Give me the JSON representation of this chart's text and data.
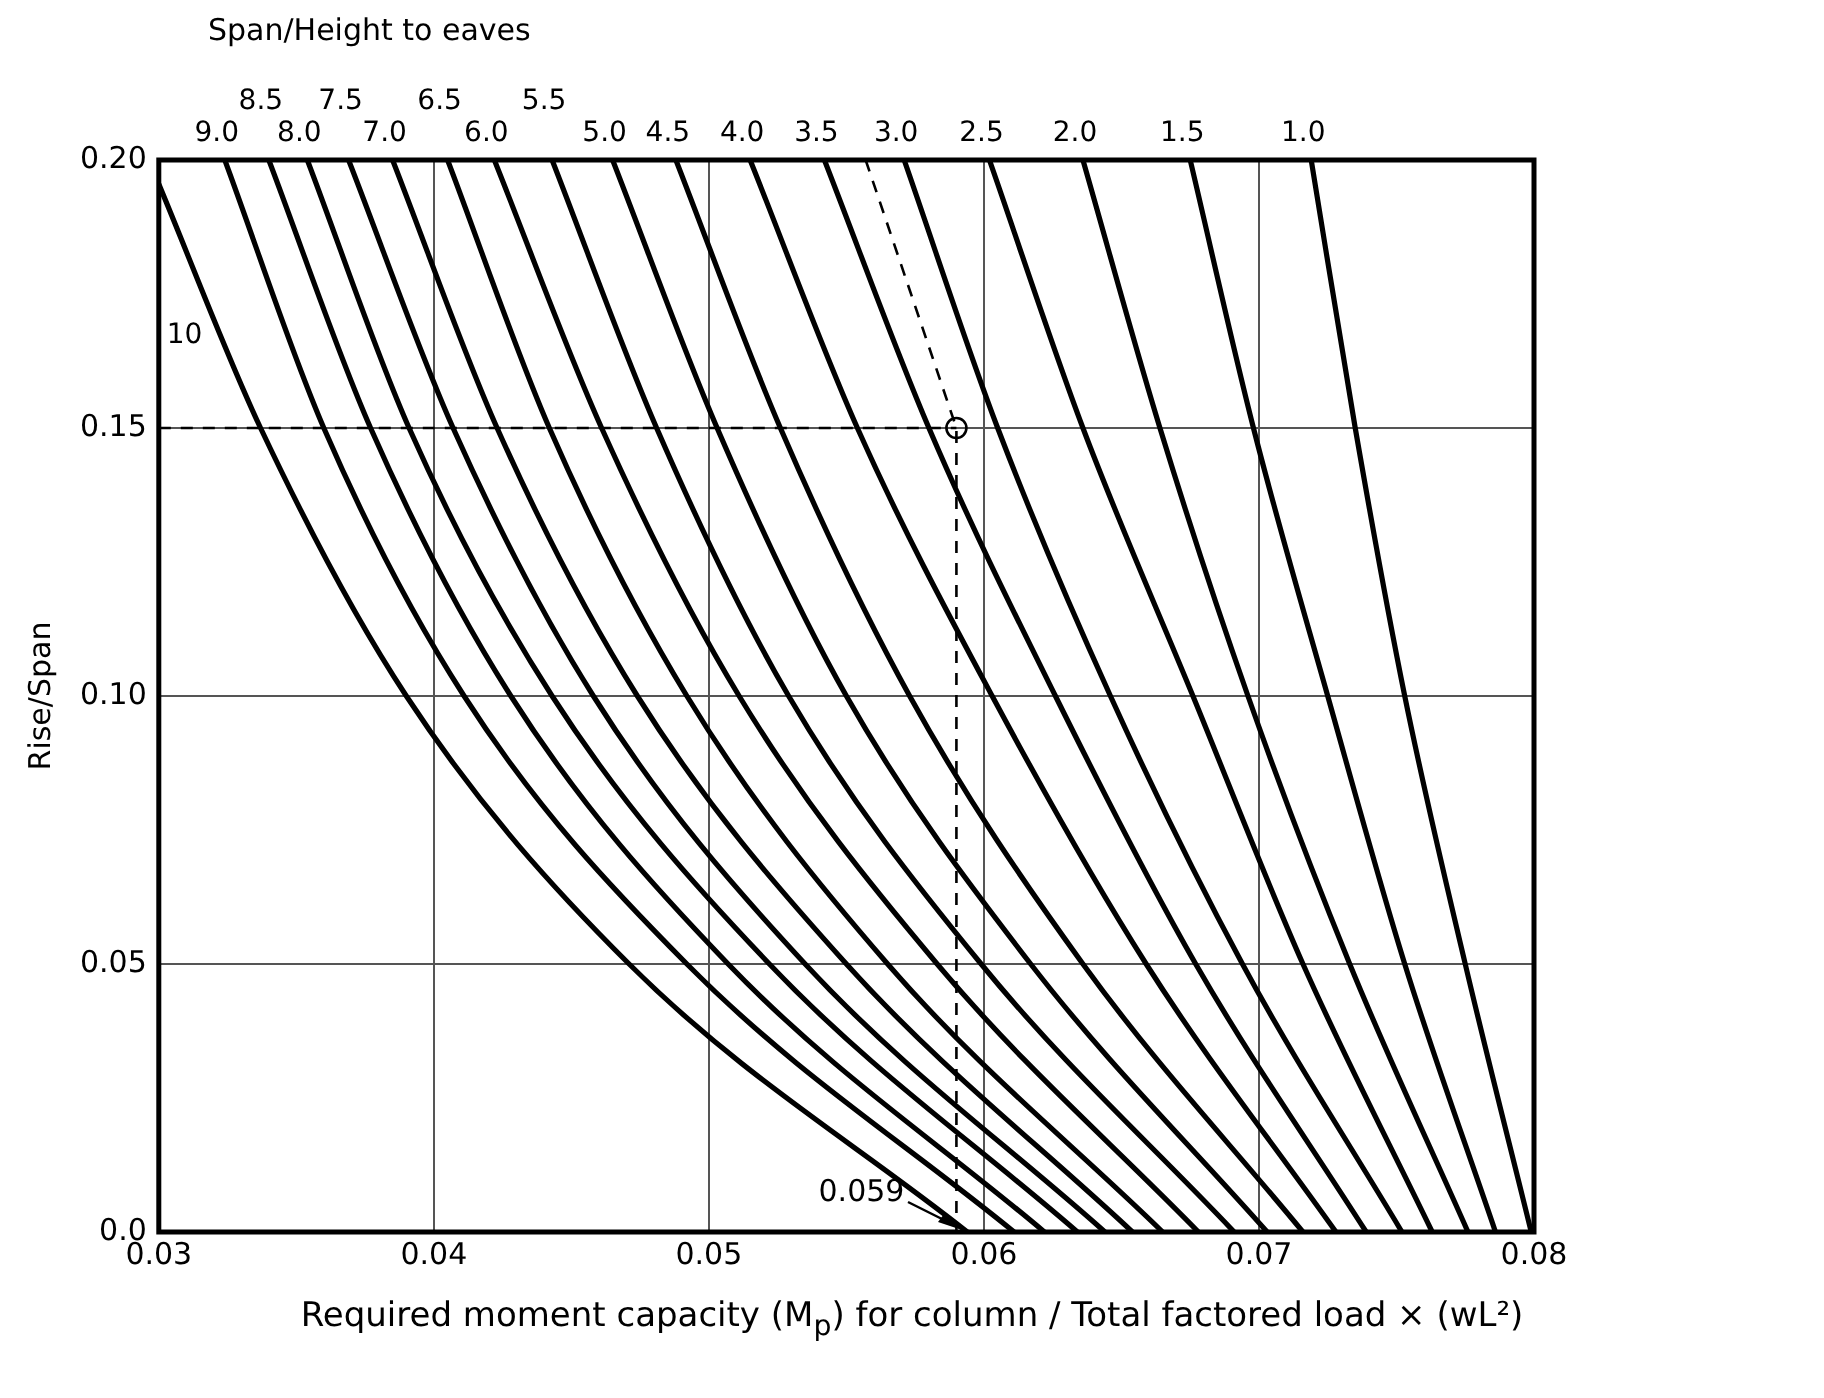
{
  "chart_data": {
    "type": "line",
    "x2label": "Span/Height to eaves",
    "xlabel": "Required moment capacity (M$_{p}$) for column / Total factored load × (wL²)",
    "ylabel": "Rise/Span",
    "xlim": [
      0.03,
      0.08
    ],
    "ylim": [
      0,
      0.2
    ],
    "xticks": [
      0.03,
      0.04,
      0.05,
      0.06,
      0.07,
      0.08
    ],
    "yticks": [
      {
        "value": 0,
        "label": "0.0"
      },
      0.05,
      {
        "value": 0.1,
        "label": "0.10"
      },
      0.15,
      {
        "value": 0.2,
        "label": "0.20"
      }
    ],
    "grid": true,
    "marker": "none",
    "line_style": "solid",
    "series": [
      {
        "name": "10",
        "color": "#000000",
        "x": [
          0.03,
          0.0337,
          0.039,
          0.0471,
          0.0594
        ],
        "values": [
          0.1955,
          0.15,
          0.1,
          0.05,
          0
        ]
      },
      {
        "name": "9.0",
        "color": "#000000",
        "x": [
          0.0324,
          0.036,
          0.0411,
          0.0492,
          0.0611
        ],
        "values": [
          0.2,
          0.15,
          0.1,
          0.05,
          0
        ]
      },
      {
        "name": "8.5",
        "color": "#000000",
        "x": [
          0.034,
          0.0377,
          0.0428,
          0.0507,
          0.0622
        ],
        "values": [
          0.2,
          0.15,
          0.1,
          0.05,
          0
        ]
      },
      {
        "name": "8.0",
        "color": "#000000",
        "x": [
          0.0354,
          0.0391,
          0.0443,
          0.0522,
          0.0634
        ],
        "values": [
          0.2,
          0.15,
          0.1,
          0.05,
          0
        ]
      },
      {
        "name": "7.5",
        "color": "#000000",
        "x": [
          0.0369,
          0.0407,
          0.0458,
          0.0535,
          0.0644
        ],
        "values": [
          0.2,
          0.15,
          0.1,
          0.05,
          0
        ]
      },
      {
        "name": "7.0",
        "color": "#000000",
        "x": [
          0.0385,
          0.0423,
          0.0474,
          0.055,
          0.0654
        ],
        "values": [
          0.2,
          0.15,
          0.1,
          0.05,
          0
        ]
      },
      {
        "name": "6.5",
        "color": "#000000",
        "x": [
          0.0405,
          0.0442,
          0.0492,
          0.0565,
          0.0665
        ],
        "values": [
          0.2,
          0.15,
          0.1,
          0.05,
          0
        ]
      },
      {
        "name": "6.0",
        "color": "#000000",
        "x": [
          0.0422,
          0.0461,
          0.0511,
          0.0583,
          0.0678
        ],
        "values": [
          0.2,
          0.15,
          0.1,
          0.05,
          0
        ]
      },
      {
        "name": "5.5",
        "color": "#000000",
        "x": [
          0.0443,
          0.0481,
          0.0529,
          0.0599,
          0.0691
        ],
        "values": [
          0.2,
          0.15,
          0.1,
          0.05,
          0
        ]
      },
      {
        "name": "5.0",
        "color": "#000000",
        "x": [
          0.0465,
          0.0503,
          0.055,
          0.0617,
          0.0703
        ],
        "values": [
          0.2,
          0.15,
          0.1,
          0.05,
          0
        ]
      },
      {
        "name": "4.5",
        "color": "#000000",
        "x": [
          0.0488,
          0.0526,
          0.0573,
          0.0636,
          0.0716
        ],
        "values": [
          0.2,
          0.15,
          0.1,
          0.05,
          0
        ]
      },
      {
        "name": "4.0",
        "color": "#000000",
        "x": [
          0.0515,
          0.0554,
          0.0603,
          0.0659,
          0.0728
        ],
        "values": [
          0.2,
          0.15,
          0.1,
          0.05,
          0
        ]
      },
      {
        "name": "3.5",
        "color": "#000000",
        "x": [
          0.0542,
          0.058,
          0.0626,
          0.0677,
          0.0739
        ],
        "values": [
          0.2,
          0.15,
          0.1,
          0.05,
          0
        ]
      },
      {
        "name": "3.0",
        "color": "#000000",
        "x": [
          0.0571,
          0.0605,
          0.0646,
          0.0694,
          0.0752
        ],
        "values": [
          0.2,
          0.15,
          0.1,
          0.05,
          0
        ]
      },
      {
        "name": "2.5",
        "color": "#000000",
        "x": [
          0.0602,
          0.0636,
          0.0676,
          0.0716,
          0.0763
        ],
        "values": [
          0.2,
          0.15,
          0.1,
          0.05,
          0
        ]
      },
      {
        "name": "2.0",
        "color": "#000000",
        "x": [
          0.0636,
          0.0664,
          0.0696,
          0.0733,
          0.0776
        ],
        "values": [
          0.2,
          0.15,
          0.1,
          0.05,
          0
        ]
      },
      {
        "name": "1.5",
        "color": "#000000",
        "x": [
          0.0675,
          0.0698,
          0.0725,
          0.0753,
          0.0786
        ],
        "values": [
          0.2,
          0.15,
          0.1,
          0.05,
          0
        ]
      },
      {
        "name": "1.0",
        "color": "#000000",
        "x": [
          0.0719,
          0.0735,
          0.0753,
          0.0775,
          0.0799
        ],
        "values": [
          0.2,
          0.15,
          0.1,
          0.05,
          0
        ]
      },
      {
        "color": "#000000",
        "line_style": "dashed",
        "x": [
          0.03,
          0.059
        ],
        "values": [
          0.15,
          0.15
        ]
      },
      {
        "color": "#000000",
        "line_style": "dashed",
        "x": [
          0.0557,
          0.059,
          0.059
        ],
        "values": [
          0.2,
          0.15,
          0
        ]
      },
      {
        "type": "scatter",
        "marker": "circle",
        "color": "#000000",
        "x": [
          0.059
        ],
        "values": [
          0.15
        ]
      }
    ],
    "annotations": [
      {
        "text": "0.059",
        "x": 0.059,
        "y": 0
      }
    ]
  }
}
